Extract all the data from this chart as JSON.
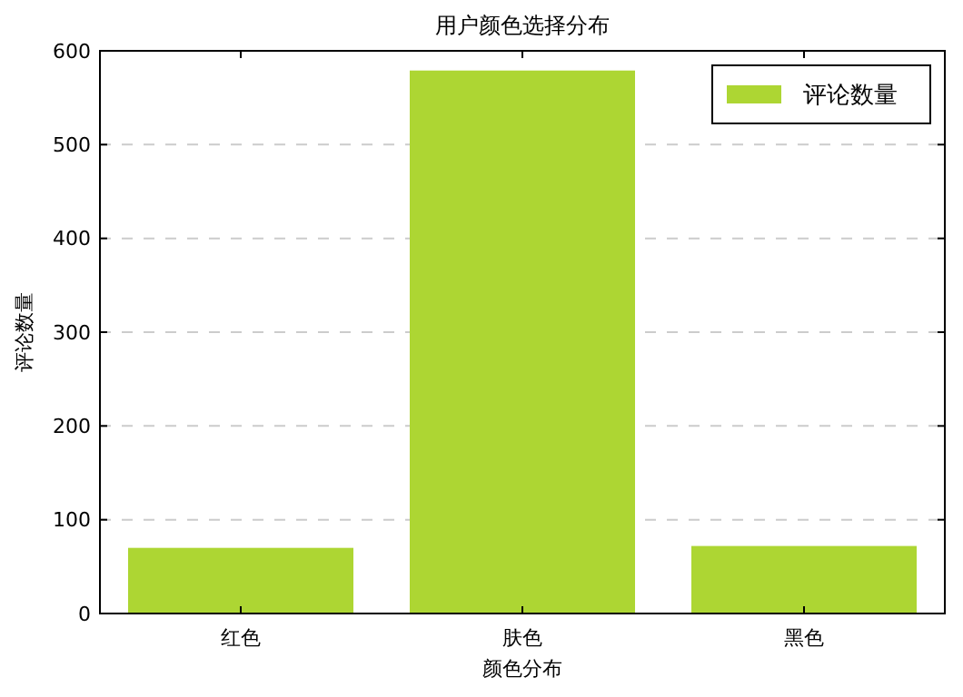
{
  "chart_data": {
    "type": "bar",
    "title": "用户颜色选择分布",
    "xlabel": "颜色分布",
    "ylabel": "评论数量",
    "categories": [
      "红色",
      "肤色",
      "黑色"
    ],
    "series": [
      {
        "name": "评论数量",
        "color": "#add633",
        "values": [
          70,
          579,
          72
        ]
      }
    ],
    "ylim": [
      0,
      600
    ],
    "yticks": [
      0,
      100,
      200,
      300,
      400,
      500,
      600
    ],
    "grid": "y",
    "legend": "top right"
  }
}
